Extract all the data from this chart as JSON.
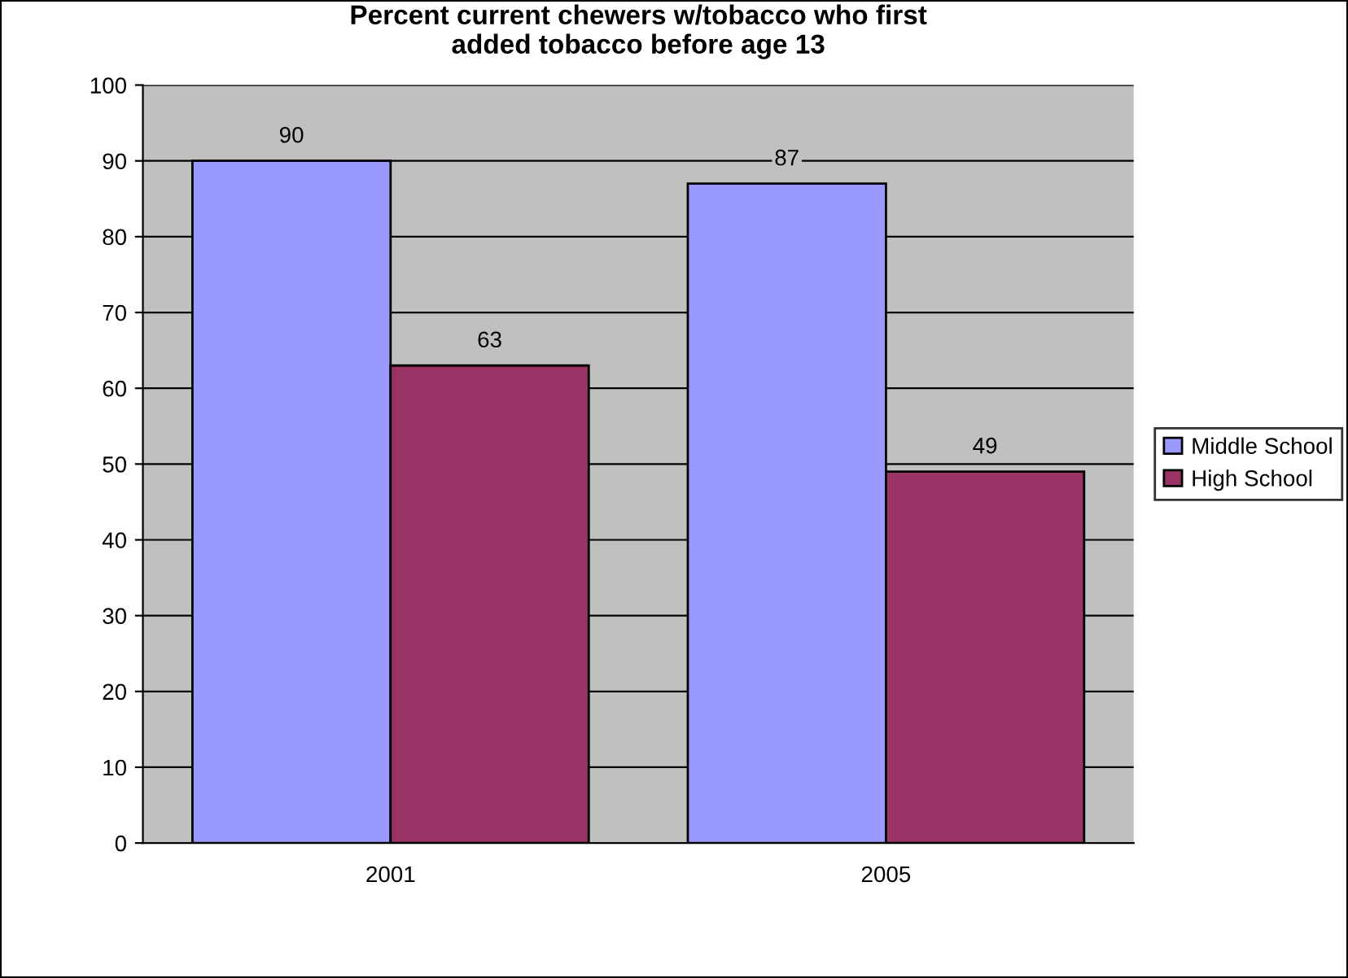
{
  "chart_data": {
    "type": "bar",
    "title": "Percent current chewers w/tobacco who first\nadded tobacco before age 13",
    "categories": [
      "2001",
      "2005"
    ],
    "series": [
      {
        "name": "Middle School",
        "color": "#9999ff",
        "values": [
          90,
          87
        ]
      },
      {
        "name": "High School",
        "color": "#993366",
        "values": [
          63,
          49
        ]
      }
    ],
    "ylim": [
      0,
      100
    ],
    "yticks": [
      0,
      10,
      20,
      30,
      40,
      50,
      60,
      70,
      80,
      90,
      100
    ],
    "grid": "y",
    "legend": "right",
    "data_labels": true
  }
}
